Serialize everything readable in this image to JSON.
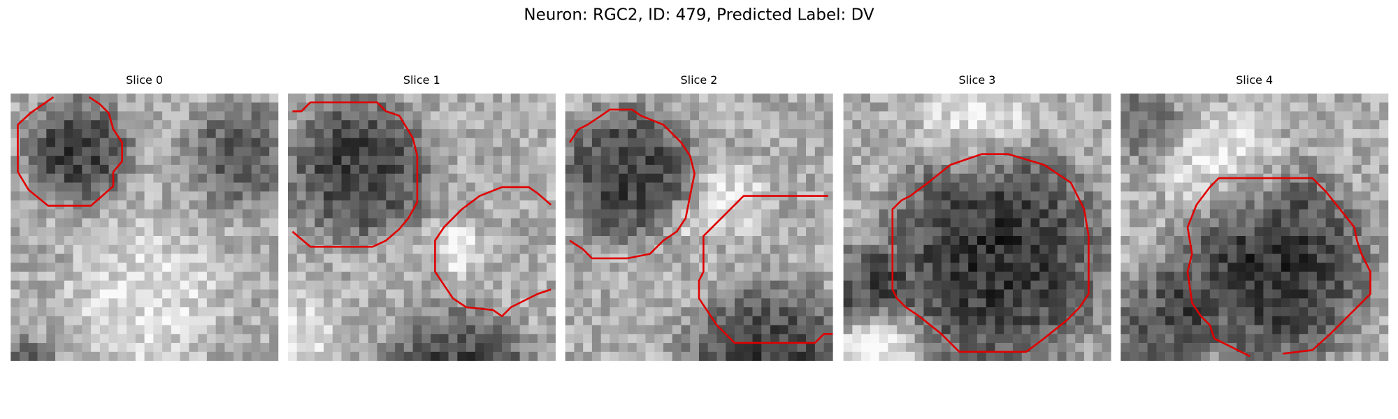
{
  "figure": {
    "title": "Neuron: RGC2, ID: 479, Predicted Label: DV",
    "panels": [
      {
        "title": "Slice 0"
      },
      {
        "title": "Slice 1"
      },
      {
        "title": "Slice 2"
      },
      {
        "title": "Slice 3"
      },
      {
        "title": "Slice 4"
      }
    ]
  }
}
